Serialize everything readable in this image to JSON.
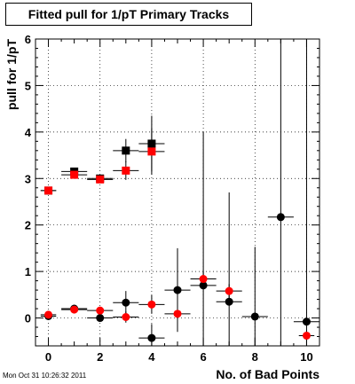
{
  "timestamp": "Mon Oct 31 10:26:32 2011",
  "chart_data": {
    "type": "scatter",
    "title": "Fitted pull for 1/pT Primary Tracks",
    "xlabel": "No. of Bad Points",
    "ylabel": "pull for 1/pT",
    "xlim": [
      -0.5,
      10.5
    ],
    "ylim": [
      -0.6,
      6
    ],
    "xticks": [
      0,
      2,
      4,
      6,
      8,
      10
    ],
    "yticks": [
      0,
      1,
      2,
      3,
      4,
      5,
      6
    ],
    "grid": true,
    "series": [
      {
        "marker": "square",
        "color": "#000000",
        "points": [
          {
            "x": 0,
            "y": 2.74,
            "ex": 0.3,
            "ey": 0.05
          },
          {
            "x": 1,
            "y": 3.15,
            "ex": 0.5,
            "ey": 0.06
          },
          {
            "x": 2,
            "y": 3.0,
            "ex": 0.5,
            "ey": 0.08
          },
          {
            "x": 3,
            "y": 3.6,
            "ex": 0.5,
            "ey": 0.25
          },
          {
            "x": 4,
            "y": 3.75,
            "ex": 0.5,
            "ey": 0.6
          }
        ]
      },
      {
        "marker": "square",
        "color": "#ff0000",
        "points": [
          {
            "x": 0,
            "y": 2.74,
            "ex": 0.3,
            "ey": 0.05
          },
          {
            "x": 1,
            "y": 3.08,
            "ex": 0.5,
            "ey": 0.06
          },
          {
            "x": 2,
            "y": 2.98,
            "ex": 0.5,
            "ey": 0.08
          },
          {
            "x": 3,
            "y": 3.17,
            "ex": 0.5,
            "ey": 0.2
          },
          {
            "x": 4,
            "y": 3.58,
            "ex": 0.5,
            "ey": 0.5
          }
        ]
      },
      {
        "marker": "circle",
        "color": "#000000",
        "points": [
          {
            "x": 0,
            "y": 0.04,
            "ex": 0.3,
            "ey": 0.05
          },
          {
            "x": 1,
            "y": 0.2,
            "ex": 0.5,
            "ey": 0.05
          },
          {
            "x": 2,
            "y": 0.0,
            "ex": 0.5,
            "ey": 0.08
          },
          {
            "x": 3,
            "y": 0.33,
            "ex": 0.5,
            "ey": 0.25
          },
          {
            "x": 4,
            "y": -0.43,
            "ex": 0.5,
            "ey": 0.3
          },
          {
            "x": 5,
            "y": 0.6,
            "ex": 0.5,
            "ey": 0.9
          },
          {
            "x": 6,
            "y": 0.7,
            "ex": 0.5,
            "ey": 3.3
          },
          {
            "x": 7,
            "y": 0.35,
            "ex": 0.5,
            "ey": 2.35
          },
          {
            "x": 8,
            "y": 0.03,
            "ex": 0.5,
            "ey": 1.5
          },
          {
            "x": 9,
            "y": 2.17,
            "ex": 0.5,
            "ey": 4.1
          },
          {
            "x": 10,
            "y": -0.08,
            "ex": 0.5,
            "ey": 6.5
          }
        ]
      },
      {
        "marker": "circle",
        "color": "#ff0000",
        "points": [
          {
            "x": 0,
            "y": 0.07,
            "ex": 0.3,
            "ey": 0.05
          },
          {
            "x": 1,
            "y": 0.18,
            "ex": 0.5,
            "ey": 0.05
          },
          {
            "x": 2,
            "y": 0.16,
            "ex": 0.5,
            "ey": 0.08
          },
          {
            "x": 3,
            "y": 0.02,
            "ex": 0.5,
            "ey": 0.12
          },
          {
            "x": 4,
            "y": 0.29,
            "ex": 0.5,
            "ey": 0.2
          },
          {
            "x": 5,
            "y": 0.09,
            "ex": 0.5,
            "ey": 0.2
          },
          {
            "x": 6,
            "y": 0.84,
            "ex": 0.5,
            "ey": 0.15
          },
          {
            "x": 7,
            "y": 0.58,
            "ex": 0.5,
            "ey": 0.15
          },
          {
            "x": 10,
            "y": -0.38,
            "ex": 0.3,
            "ey": 0.1
          }
        ]
      }
    ]
  }
}
